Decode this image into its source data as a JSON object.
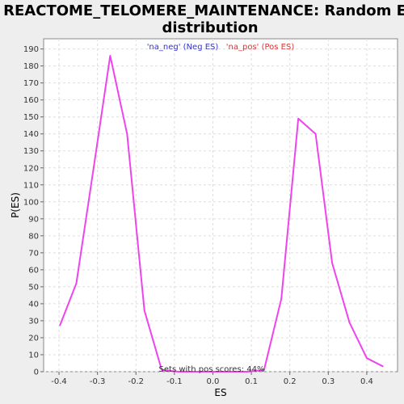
{
  "chart_data": {
    "type": "line",
    "title_line1": "REACTOME_TELOMERE_MAINTENANCE: Random ES",
    "title_line2": "distribution",
    "xlabel": "ES",
    "ylabel": "P(ES)",
    "xlim": [
      -0.44,
      0.48
    ],
    "ylim": [
      0,
      196
    ],
    "x_ticks": [
      -0.4,
      -0.3,
      -0.2,
      -0.1,
      0.0,
      0.1,
      0.2,
      0.3,
      0.4
    ],
    "x_tick_labels": [
      "-0.4",
      "-0.3",
      "-0.2",
      "-0.1",
      "0.0",
      "0.1",
      "0.2",
      "0.3",
      "0.4"
    ],
    "y_ticks": [
      0,
      10,
      20,
      30,
      40,
      50,
      60,
      70,
      80,
      90,
      100,
      110,
      120,
      130,
      140,
      150,
      160,
      170,
      180,
      190
    ],
    "grid": true,
    "legend": [
      {
        "label": "'na_neg' (Neg ES)",
        "color": "#3333cc"
      },
      {
        "label": "'na_pos' (Pos ES)",
        "color": "#dd3333"
      }
    ],
    "annotation": "Sets with pos scores: 44%",
    "series": [
      {
        "color": "#ee44ee",
        "x": [
          -0.398,
          -0.355,
          -0.31,
          -0.267,
          -0.223,
          -0.178,
          -0.133,
          -0.09,
          -0.045,
          0.0,
          0.045,
          0.09,
          0.133,
          0.178,
          0.222,
          0.267,
          0.31,
          0.355,
          0.4,
          0.443
        ],
        "y": [
          27,
          52,
          120,
          186,
          140,
          36,
          1,
          0,
          0,
          0,
          0,
          0,
          1,
          43,
          149,
          140,
          64,
          29,
          8,
          3
        ]
      }
    ]
  }
}
